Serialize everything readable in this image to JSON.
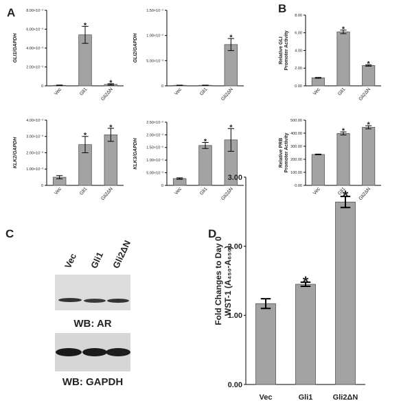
{
  "panel_labels": [
    "A",
    "B",
    "C",
    "D"
  ],
  "blot": {
    "lanes": [
      "Vec",
      "Gli1",
      "Gli2ΔN"
    ],
    "ar_label": "WB:  AR",
    "gapdh_label": "WB:  GAPDH"
  },
  "chart_data": [
    {
      "type": "bar",
      "ylabel": [
        "GLI1/GAPDH"
      ],
      "ylabel_italic": true,
      "color": "#a3a3a3",
      "categories": [
        "Vec",
        "Gli1",
        "Gli2ΔN"
      ],
      "values": [
        5e-05,
        0.0054,
        0.00015
      ],
      "errors": [
        3e-05,
        0.0009,
        8e-05
      ],
      "stars": [
        null,
        "*",
        "*"
      ],
      "ylim": [
        0,
        0.008
      ],
      "yticks": [
        0,
        {
          "value": 0.002,
          "label": "2.00×10⁻³"
        },
        {
          "value": 0.004,
          "label": "4.00×10⁻³"
        },
        {
          "value": 0.006,
          "label": "6.00×10⁻³"
        },
        {
          "value": 0.008,
          "label": "8.00×10⁻³"
        }
      ]
    },
    {
      "type": "bar",
      "ylabel": [
        "GLI2/GAPDH"
      ],
      "ylabel_italic": true,
      "color": "#a3a3a3",
      "categories": [
        "Vec",
        "Gli1",
        "Gli2ΔN"
      ],
      "values": [
        0.0001,
        0.0001,
        0.0082
      ],
      "errors": [
        3e-05,
        3e-05,
        0.0012
      ],
      "stars": [
        null,
        null,
        "*"
      ],
      "ylim": [
        0,
        0.015
      ],
      "yticks": [
        0,
        {
          "value": 0.005,
          "label": "5.00×10⁻³"
        },
        {
          "value": 0.01,
          "label": "1.00×10⁻²"
        },
        {
          "value": 0.015,
          "label": "1.50×10⁻²"
        }
      ]
    },
    {
      "type": "bar",
      "ylabel": [
        "KLK2/GAPDH"
      ],
      "ylabel_italic": true,
      "color": "#a3a3a3",
      "categories": [
        "Vec",
        "Gli1",
        "Gli2ΔN"
      ],
      "values": [
        0.0005,
        0.0025,
        0.0031
      ],
      "errors": [
        0.0001,
        0.0005,
        0.0004
      ],
      "stars": [
        null,
        "*",
        "*"
      ],
      "ylim": [
        0,
        0.004
      ],
      "yticks": [
        0,
        {
          "value": 0.001,
          "label": "1.00×10⁻³"
        },
        {
          "value": 0.002,
          "label": "2.00×10⁻³"
        },
        {
          "value": 0.003,
          "label": "3.00×10⁻³"
        },
        {
          "value": 0.004,
          "label": "4.00×10⁻³"
        }
      ]
    },
    {
      "type": "bar",
      "ylabel": [
        "KLK3/GAPDH"
      ],
      "ylabel_italic": true,
      "color": "#a3a3a3",
      "categories": [
        "Vec",
        "Gli1",
        "Gli2ΔN"
      ],
      "values": [
        0.0027,
        0.0158,
        0.018
      ],
      "errors": [
        0.0003,
        0.0012,
        0.0045
      ],
      "stars": [
        null,
        "*",
        "*"
      ],
      "ylim": [
        0,
        0.025
      ],
      "yticks": [
        0,
        {
          "value": 0.005,
          "label": "5.00×10⁻³"
        },
        {
          "value": 0.01,
          "label": "1.00×10⁻²"
        },
        {
          "value": 0.015,
          "label": "1.50×10⁻²"
        },
        {
          "value": 0.02,
          "label": "2.00×10⁻²"
        },
        {
          "value": 0.025,
          "label": "2.50×10⁻²"
        }
      ]
    },
    {
      "type": "bar",
      "ylabel": [
        "Relative GLI",
        "Promoter Activity"
      ],
      "ylabel_italic": false,
      "color": "#a3a3a3",
      "categories": [
        "Vec",
        "Gli1",
        "Gli2ΔN"
      ],
      "values": [
        0.9,
        6.1,
        2.3
      ],
      "errors": [
        0.05,
        0.2,
        0.08
      ],
      "stars": [
        null,
        "*",
        "*"
      ],
      "ylim": [
        0,
        8
      ],
      "yticks": [
        {
          "value": 0,
          "label": "0.00"
        },
        {
          "value": 2,
          "label": "2.00"
        },
        {
          "value": 4,
          "label": "4.00"
        },
        {
          "value": 6,
          "label": "6.00"
        },
        {
          "value": 8,
          "label": "8.00"
        }
      ]
    },
    {
      "type": "bar",
      "ylabel": [
        "Relative PRB",
        "Promoter Activity"
      ],
      "ylabel_italic": false,
      "color": "#a3a3a3",
      "categories": [
        "Vec",
        "Gli1",
        "Gli2ΔN"
      ],
      "values": [
        237,
        398,
        445
      ],
      "errors": [
        3,
        12,
        12
      ],
      "stars": [
        null,
        "*",
        "*"
      ],
      "ylim": [
        0,
        500
      ],
      "yticks": [
        {
          "value": 0,
          "label": "0.00"
        },
        {
          "value": 100,
          "label": "100.00"
        },
        {
          "value": 200,
          "label": "200.00"
        },
        {
          "value": 300,
          "label": "300.00"
        },
        {
          "value": 400,
          "label": "400.00"
        },
        {
          "value": 500,
          "label": "500.00"
        }
      ]
    },
    {
      "type": "bar",
      "ylabel": [
        "Fold Changes to Day 0",
        "WST-1 (A₄₅₀-A₆₅₀)"
      ],
      "ylabel_italic": false,
      "color": "#a3a3a3",
      "categories": [
        "Vec",
        "Gli1",
        "Gli2ΔN"
      ],
      "values": [
        1.17,
        1.45,
        2.64
      ],
      "errors": [
        0.07,
        0.03,
        0.08
      ],
      "stars": [
        null,
        "*",
        "*"
      ],
      "ylim": [
        0,
        3
      ],
      "yticks": [
        {
          "value": 0,
          "label": "0.00"
        },
        {
          "value": 1,
          "label": "1.00"
        },
        {
          "value": 2,
          "label": "2.00"
        },
        {
          "value": 3,
          "label": "3.00"
        }
      ]
    }
  ]
}
